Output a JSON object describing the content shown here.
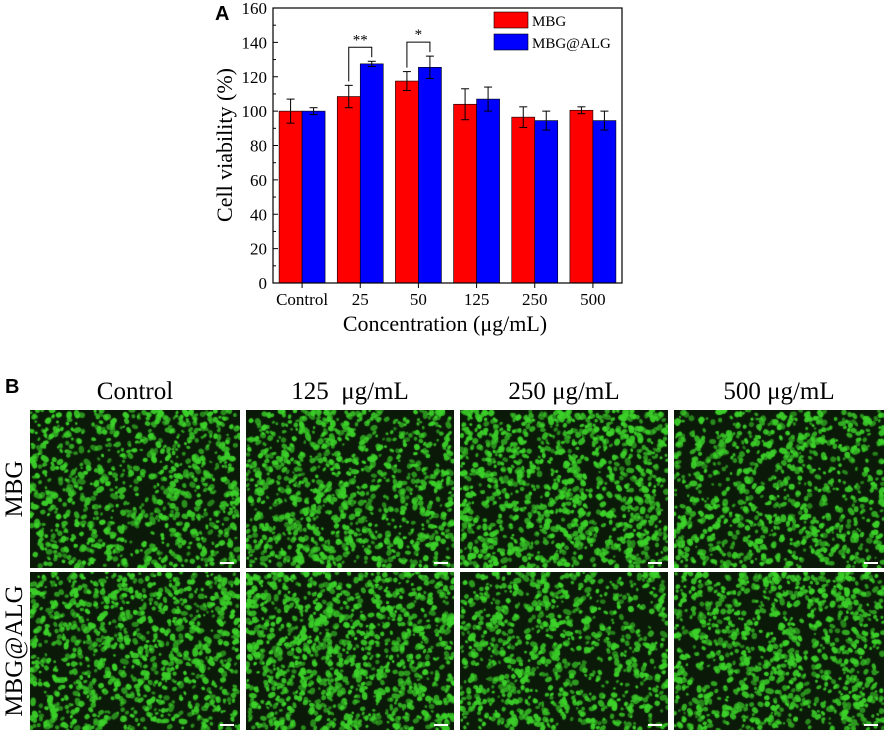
{
  "panel_a_label": "A",
  "panel_b_label": "B",
  "chart_data": {
    "type": "bar",
    "categories": [
      "Control",
      "25",
      "50",
      "125",
      "250",
      "500"
    ],
    "series": [
      {
        "name": "MBG",
        "color": "#ff0000",
        "values": [
          100,
          108.5,
          117.5,
          104,
          96.5,
          100.5
        ],
        "errors": [
          7,
          6.5,
          5.5,
          9,
          6,
          2
        ]
      },
      {
        "name": "MBG@ALG",
        "color": "#0000ff",
        "values": [
          100,
          127.5,
          125.5,
          107,
          94.5,
          94.5
        ],
        "errors": [
          2,
          1.5,
          6.5,
          7,
          5.5,
          5.5
        ]
      }
    ],
    "xlabel": "Concentration (μg/mL)",
    "ylabel": "Cell viability (%)",
    "ylim": [
      0,
      160
    ],
    "yticks": [
      "0",
      "20",
      "40",
      "60",
      "80",
      "100",
      "120",
      "140",
      "160"
    ],
    "legend": [
      "MBG",
      "MBG@ALG"
    ],
    "legend_position": "top-right",
    "annotations": [
      {
        "text": "**",
        "category": "25"
      },
      {
        "text": "*",
        "category": "50"
      }
    ]
  },
  "micrographs": {
    "columns": [
      "Control",
      "125  μg/mL",
      "250 μg/mL",
      "500 μg/mL"
    ],
    "rows": [
      "MBG",
      "MBG@ALG"
    ],
    "cell_color": "#3cd22a",
    "background_color": "#0b1a08"
  }
}
